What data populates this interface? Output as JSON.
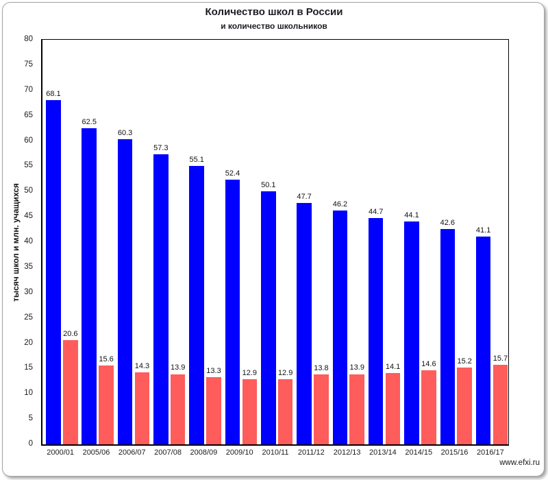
{
  "frame": {
    "watermark": "www.efxi.ru"
  },
  "chart_data": {
    "type": "bar",
    "title": "Количество школ в России",
    "subtitle": "и количество школьников",
    "ylabel": "тысяч школ и млн. учащихся",
    "xlabel": "",
    "categories": [
      "2000/01",
      "2005/06",
      "2006/07",
      "2007/08",
      "2008/09",
      "2009/10",
      "2010/11",
      "2011/12",
      "2012/13",
      "2013/14",
      "2014/15",
      "2015/16",
      "2016/17"
    ],
    "series": [
      {
        "name": "тысяч школ",
        "color": "#0000ff",
        "values": [
          68.1,
          62.5,
          60.3,
          57.3,
          55.1,
          52.4,
          50.1,
          47.7,
          46.2,
          44.7,
          44.1,
          42.6,
          41.1
        ]
      },
      {
        "name": "млн. учащихся",
        "color": "#ff5c5c",
        "values": [
          20.6,
          15.6,
          14.3,
          13.9,
          13.3,
          12.9,
          12.9,
          13.8,
          13.9,
          14.1,
          14.6,
          15.2,
          15.7
        ]
      }
    ],
    "ylim": [
      0,
      80
    ],
    "y_ticks": [
      0,
      5,
      10,
      15,
      20,
      25,
      30,
      35,
      40,
      45,
      50,
      55,
      60,
      65,
      70,
      75,
      80
    ],
    "grid": false,
    "legend": "none",
    "value_labels": true,
    "plot_border_color": "#000000"
  }
}
